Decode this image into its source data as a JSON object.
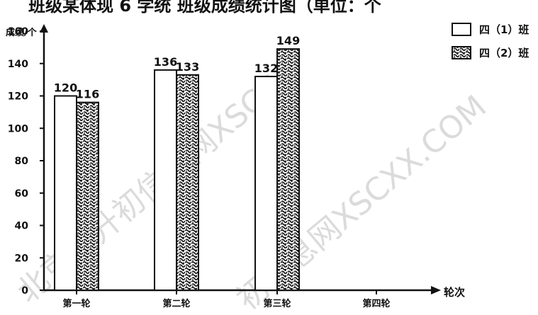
{
  "chart_data": {
    "type": "bar",
    "title_fragment": "班级某体现 6 学统 班级成绩统计图（单位：个",
    "ylabel": "成绩/个",
    "xlabel": "轮次",
    "ylim": [
      0,
      160
    ],
    "yticks": [
      0,
      20,
      40,
      60,
      80,
      100,
      120,
      140,
      160
    ],
    "categories": [
      "第一轮",
      "第二轮",
      "第三轮",
      "第四轮"
    ],
    "series": [
      {
        "name": "四（1）班",
        "pattern": "white",
        "values": [
          120,
          136,
          132,
          null
        ]
      },
      {
        "name": "四（2）班",
        "pattern": "speckled",
        "values": [
          116,
          133,
          149,
          null
        ]
      }
    ],
    "legend_position": "top-right",
    "watermark": "北京小升初信息网XSCXX.COM"
  },
  "colors": {
    "ink": "#111111",
    "background": "#ffffff",
    "watermark": "#9a9a9a"
  }
}
